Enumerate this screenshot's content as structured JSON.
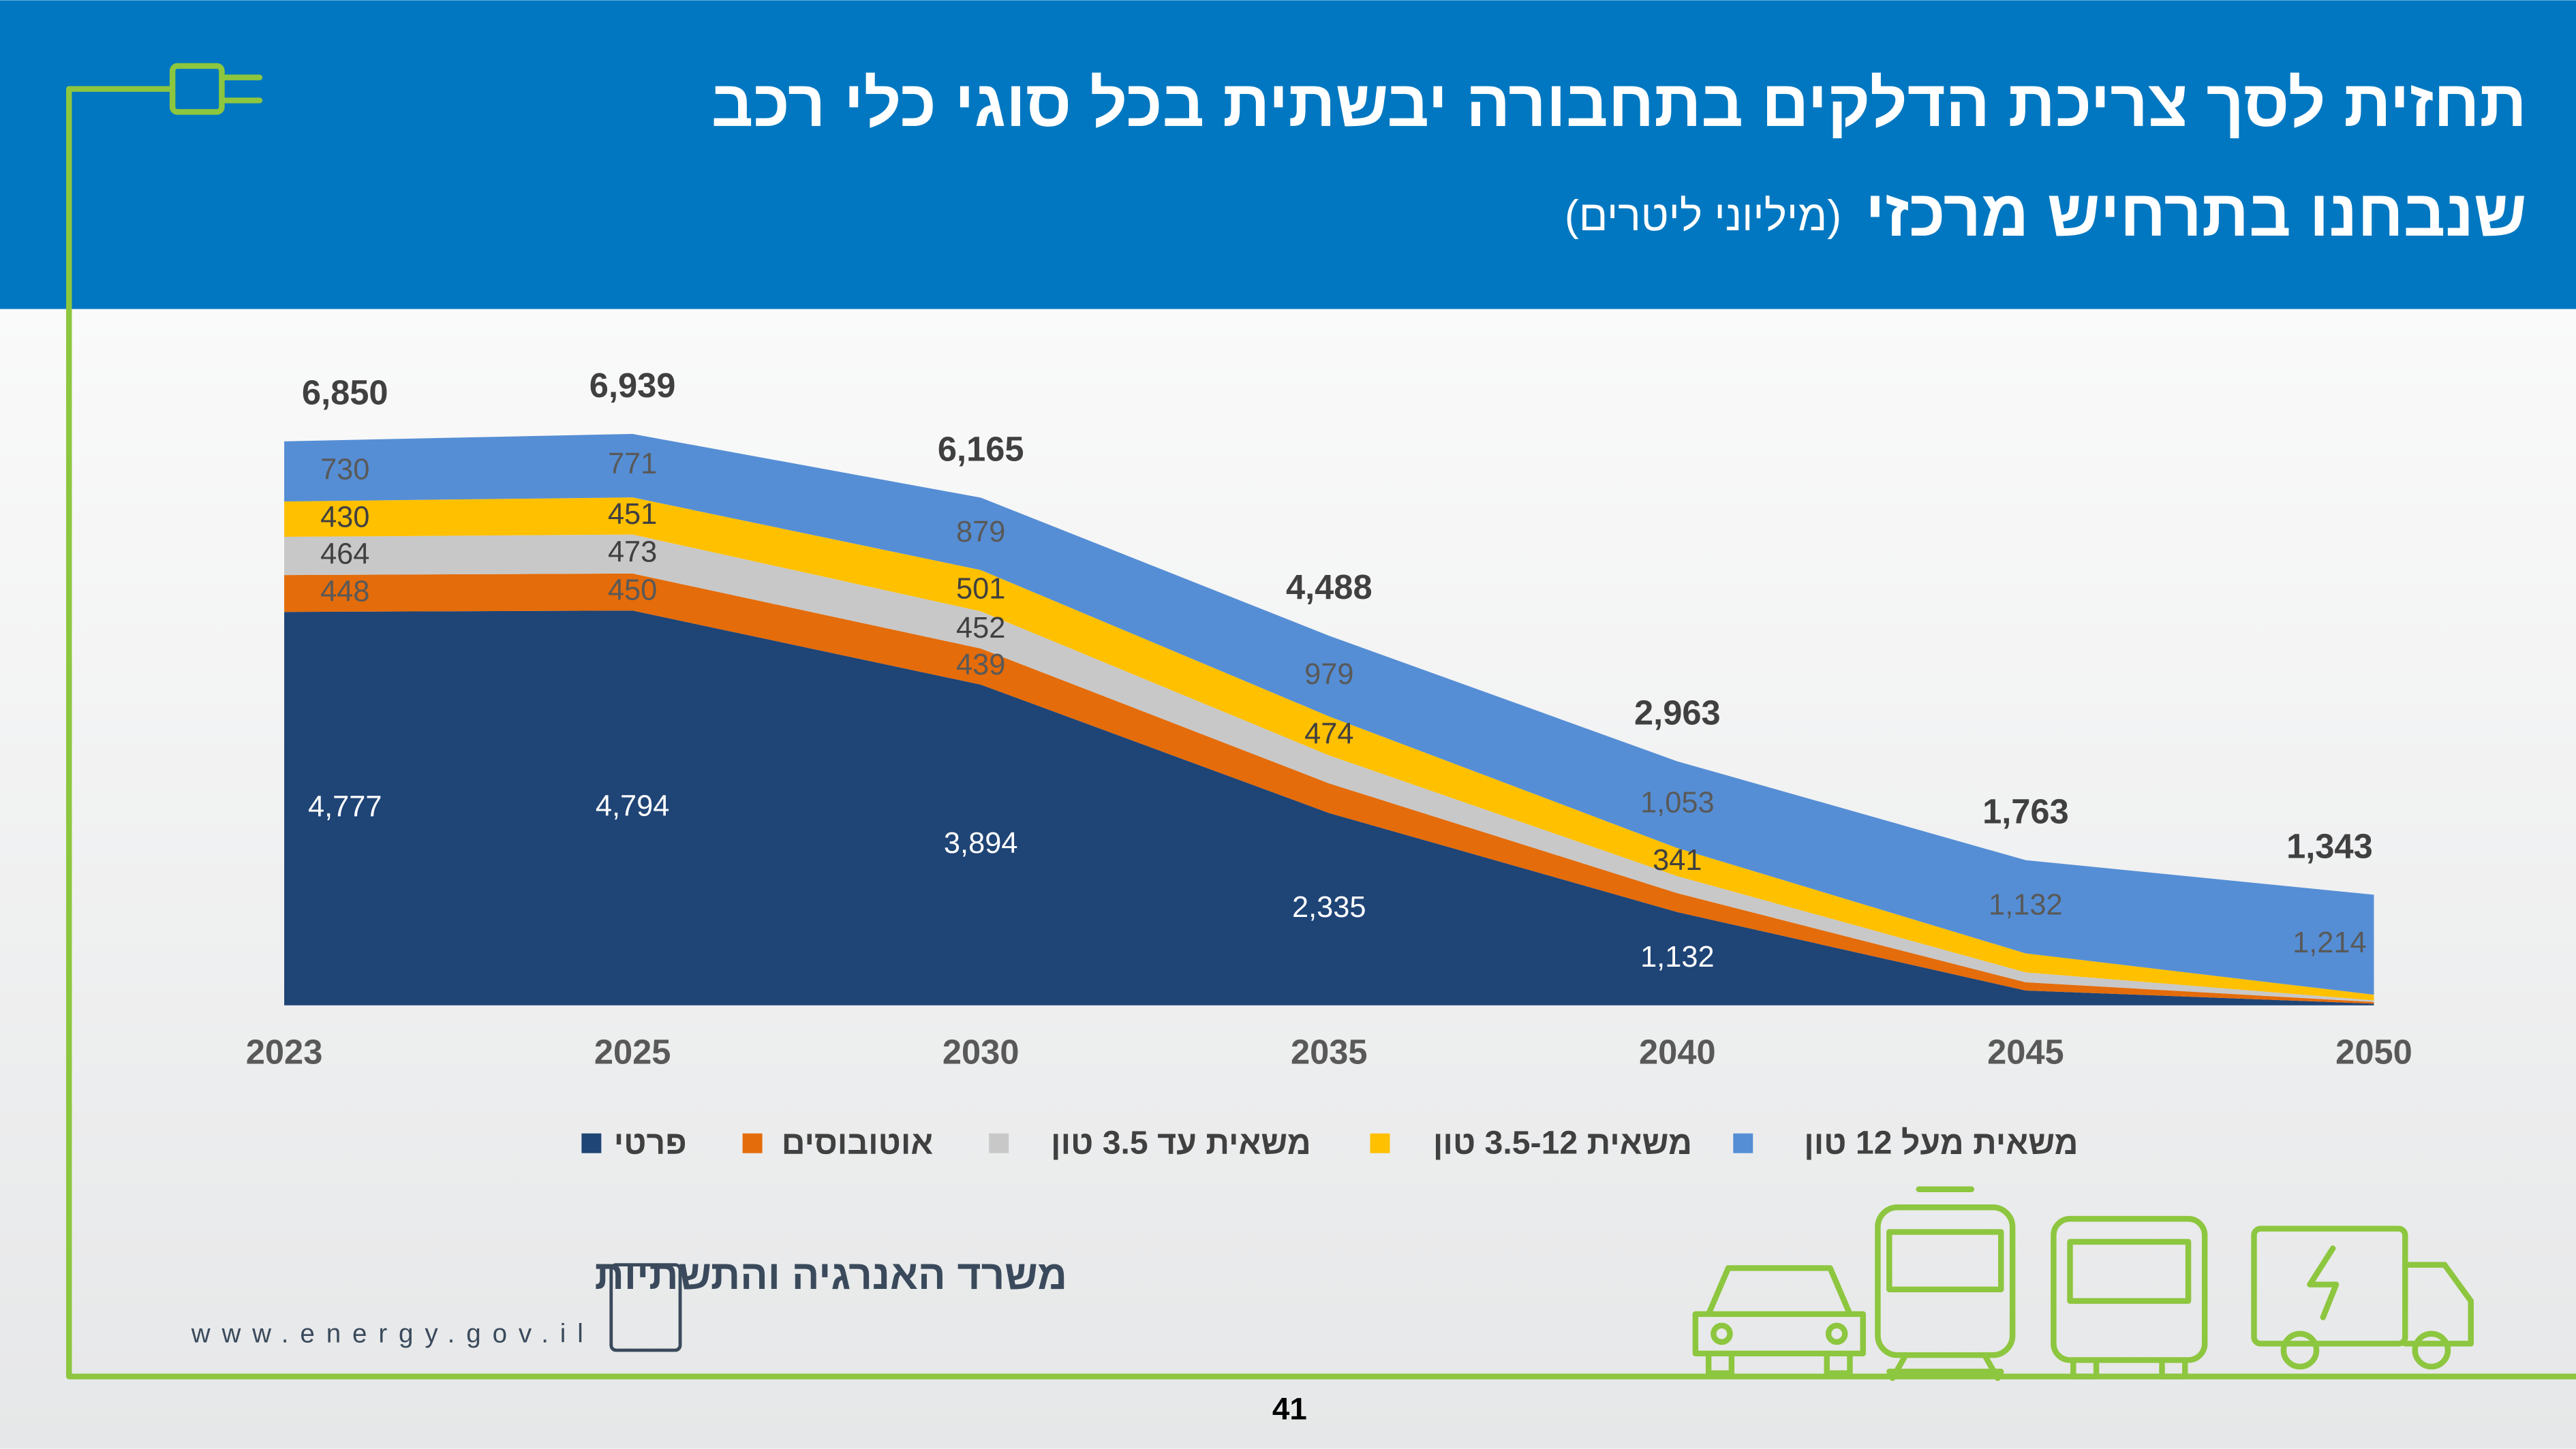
{
  "chart_data": {
    "type": "stacked-area",
    "title": [
      "תחזית לסך צריכת הדלקים בתחבורה יבשתית בכל סוגי כלי רכב",
      "שנבחנו בתרחיש מרכזי"
    ],
    "subtitle": "(מיליוני ליטרים)",
    "categories": [
      "2023",
      "2025",
      "2030",
      "2035",
      "2040",
      "2045",
      "2050"
    ],
    "ylim": [
      0,
      7000
    ],
    "legend": "bottom",
    "series": [
      {
        "name": "פרטי",
        "color": "#1f4476",
        "label_color": "#ffffff",
        "values": [
          4777,
          4794,
          3894,
          2335,
          1132,
          180,
          20
        ],
        "value_labels": [
          "4,777",
          "4,794",
          "3,894",
          "2,335",
          "1,132",
          null,
          null
        ]
      },
      {
        "name": "אוטובוסים",
        "color": "#e46c0a",
        "label_color": "#595959",
        "values": [
          448,
          450,
          439,
          360,
          230,
          100,
          20
        ],
        "value_labels": [
          "448",
          "450",
          "439",
          null,
          null,
          null,
          null
        ]
      },
      {
        "name": "משאית עד 3.5 טון",
        "color": "#c8c8c8",
        "label_color": "#404040",
        "values": [
          464,
          473,
          452,
          340,
          207,
          120,
          20
        ],
        "value_labels": [
          "464",
          "473",
          "452",
          null,
          null,
          null,
          null
        ]
      },
      {
        "name": "משאית 3.5-12 טון",
        "color": "#ffc000",
        "label_color": "#404040",
        "values": [
          430,
          451,
          501,
          474,
          341,
          231,
          69
        ],
        "value_labels": [
          "430",
          "451",
          "501",
          "474",
          "341",
          null,
          null
        ]
      },
      {
        "name": "משאית מעל 12 טון",
        "color": "#558ed5",
        "label_color": "#595959",
        "values": [
          730,
          771,
          879,
          979,
          1053,
          1132,
          1214
        ],
        "value_labels": [
          "730",
          "771",
          "879",
          "979",
          "1,053",
          "1,132",
          "1,214"
        ]
      }
    ],
    "totals": {
      "values": [
        6850,
        6939,
        6165,
        4488,
        2963,
        1763,
        1343
      ],
      "value_labels": [
        "6,850",
        "6,939",
        "6,165",
        "4,488",
        "2,963",
        "1,763",
        "1,343"
      ]
    }
  },
  "footer": {
    "ministry": "משרד האנרגיה והתשתיות",
    "url": "www.energy.gov.il",
    "page": 41
  }
}
